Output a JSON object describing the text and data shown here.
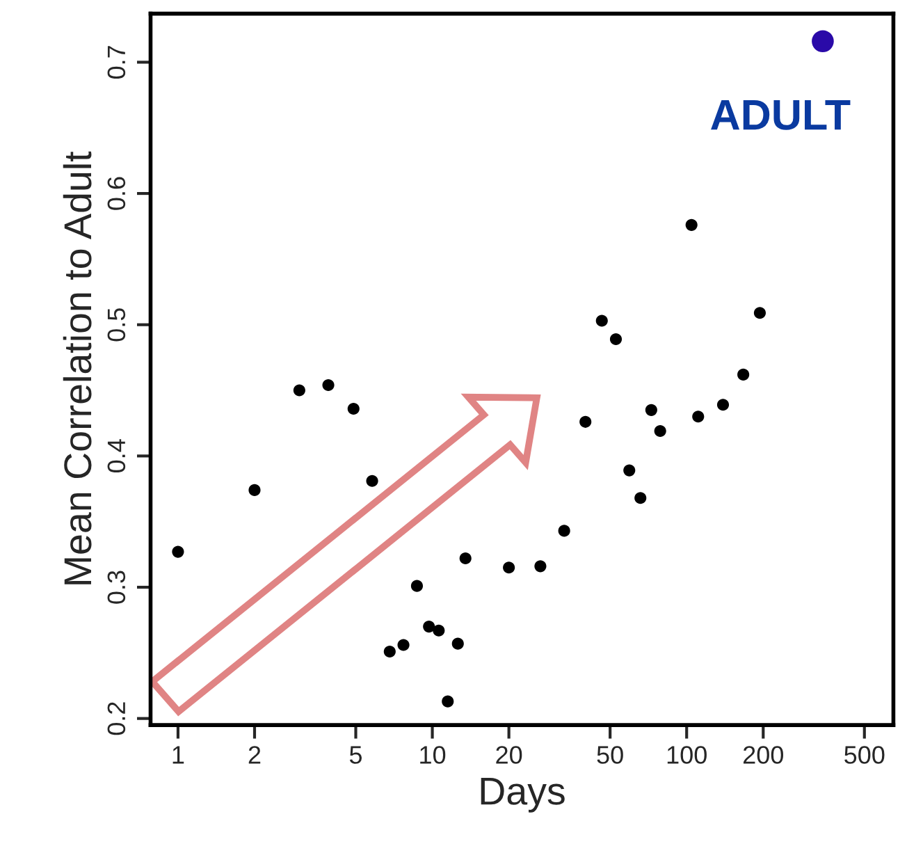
{
  "chart_data": {
    "type": "scatter",
    "xlabel": "Days",
    "ylabel": "Mean Correlation to Adult",
    "log": "x",
    "xlim": [
      0.78,
      650
    ],
    "ylim": [
      0.195,
      0.737
    ],
    "xticks": [
      1,
      2,
      5,
      10,
      20,
      50,
      100,
      200,
      500
    ],
    "yticks": [
      0.2,
      0.3,
      0.4,
      0.5,
      0.6,
      0.7
    ],
    "grid": false,
    "legend": false,
    "marker": "circle",
    "series": [
      {
        "color": "#000000",
        "x": [
          1,
          2,
          3,
          3.9,
          4.9,
          5.8,
          6.8,
          7.7,
          8.7,
          9.7,
          10.6,
          11.5,
          12.6,
          13.5,
          20,
          26.6,
          33,
          40,
          46.4,
          52.7,
          59.5,
          65.8,
          72.6,
          78.7,
          104.5,
          111,
          139,
          167,
          194
        ],
        "values": [
          0.327,
          0.374,
          0.45,
          0.454,
          0.436,
          0.381,
          0.251,
          0.256,
          0.301,
          0.27,
          0.267,
          0.213,
          0.257,
          0.322,
          0.315,
          0.316,
          0.343,
          0.426,
          0.503,
          0.489,
          0.389,
          0.368,
          0.435,
          0.419,
          0.576,
          0.43,
          0.439,
          0.462,
          0.509
        ]
      },
      {
        "name": "ADULT",
        "color": "#2a0aa8",
        "x": [
          343
        ],
        "values": [
          0.716
        ]
      }
    ]
  }
}
